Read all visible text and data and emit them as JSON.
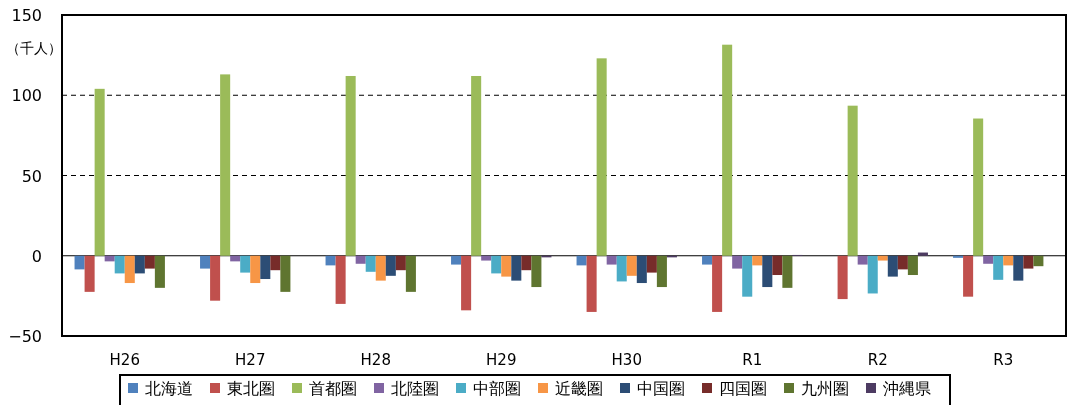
{
  "chart_data": {
    "type": "bar",
    "ylabel": "（千人）",
    "categories": [
      "H26",
      "H27",
      "H28",
      "H29",
      "H30",
      "R1",
      "R2",
      "R3"
    ],
    "ylim": [
      -50,
      150
    ],
    "yticks": [
      {
        "value": -50,
        "label": "−50"
      },
      0,
      50,
      100,
      150
    ],
    "grid": "y",
    "legend": "bottom",
    "series": [
      {
        "name": "北海道",
        "color": "#4f81bd",
        "values": [
          -8.5,
          -8,
          -6,
          -5.5,
          -6,
          -5.5,
          0,
          -1.3
        ]
      },
      {
        "name": "東北圏",
        "color": "#c0504d",
        "values": [
          -22.5,
          -28,
          -30,
          -34,
          -35,
          -35,
          -27,
          -25.5
        ]
      },
      {
        "name": "首都圏",
        "color": "#9bbb59",
        "values": [
          104,
          113,
          112,
          112,
          123,
          131.5,
          93.5,
          85.5
        ]
      },
      {
        "name": "北陸圏",
        "color": "#8064a2",
        "values": [
          -3.5,
          -3.5,
          -5,
          -3,
          -5.5,
          -8,
          -5.5,
          -5
        ]
      },
      {
        "name": "中部圏",
        "color": "#4bacc6",
        "values": [
          -11,
          -10.5,
          -10,
          -11,
          -16,
          -25.5,
          -23.5,
          -15
        ]
      },
      {
        "name": "近畿圏",
        "color": "#f79646",
        "values": [
          -17,
          -17,
          -15.5,
          -13,
          -12.5,
          -6,
          -3,
          -6
        ]
      },
      {
        "name": "中国圏",
        "color": "#2c4d75",
        "values": [
          -11,
          -14.5,
          -12.5,
          -15.5,
          -17,
          -19.5,
          -13,
          -15.5
        ]
      },
      {
        "name": "四国圏",
        "color": "#772c2a",
        "values": [
          -8,
          -9,
          -9,
          -9,
          -10.5,
          -12,
          -8.5,
          -8
        ]
      },
      {
        "name": "九州圏",
        "color": "#5f7530",
        "values": [
          -20,
          -22.5,
          -22.5,
          -19.5,
          -19.5,
          -20,
          -12,
          -6.5
        ]
      },
      {
        "name": "沖縄県",
        "color": "#4d3b62",
        "values": [
          0,
          0,
          0,
          -1,
          -1,
          0.5,
          2,
          0
        ]
      }
    ]
  }
}
